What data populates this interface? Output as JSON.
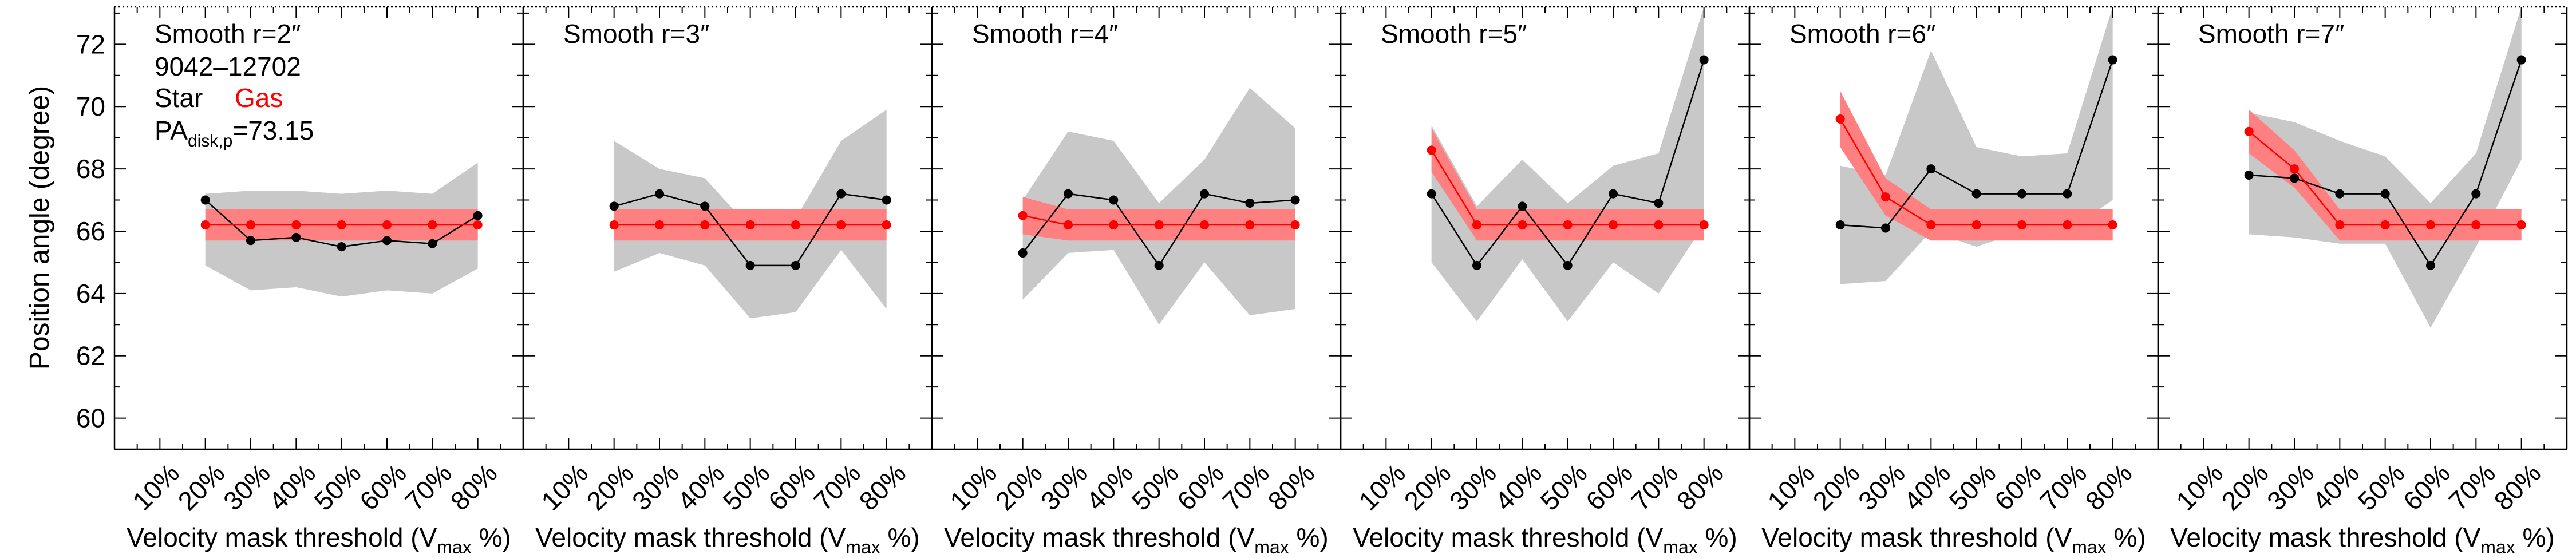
{
  "y_axis_label": "Position angle (degree)",
  "colors": {
    "star": "#000000",
    "gas": "#ff0000",
    "star_band": "#c8c8c8",
    "gas_band": "#ff8080"
  },
  "chart_data": [
    {
      "type": "line",
      "title": "Smooth r=2″",
      "info_lines": [
        "9042–12702"
      ],
      "legend_star": "Star",
      "legend_gas": "Gas",
      "pa_label_main": "PA",
      "pa_label_sub": "disk,p",
      "pa_label_value": "=73.15",
      "xlabel": "Velocity mask threshold (V",
      "xlabel_sub": "max",
      "xlabel_end": " %)",
      "xlim": [
        0,
        90
      ],
      "ylim": [
        59,
        73.2
      ],
      "x_ticks": [
        10,
        20,
        30,
        40,
        50,
        60,
        70,
        80
      ],
      "x_tick_labels": [
        "10%",
        "20%",
        "30%",
        "40%",
        "50%",
        "60%",
        "70%",
        "80%"
      ],
      "y_ticks": [
        60,
        62,
        64,
        66,
        68,
        70,
        72
      ],
      "y_tick_labels": [
        "60",
        "62",
        "64",
        "66",
        "68",
        "70",
        "72"
      ],
      "series": [
        {
          "name": "Star",
          "x": [
            20,
            30,
            40,
            50,
            60,
            70,
            80
          ],
          "y": [
            67.0,
            65.7,
            65.8,
            65.5,
            65.7,
            65.6,
            66.5
          ],
          "band_low": [
            64.9,
            64.1,
            64.2,
            63.9,
            64.1,
            64.0,
            64.8
          ],
          "band_high": [
            67.2,
            67.3,
            67.3,
            67.2,
            67.3,
            67.2,
            68.2
          ]
        },
        {
          "name": "Gas",
          "x": [
            20,
            30,
            40,
            50,
            60,
            70,
            80
          ],
          "y": [
            66.2,
            66.2,
            66.2,
            66.2,
            66.2,
            66.2,
            66.2
          ],
          "band_low": [
            65.7,
            65.7,
            65.7,
            65.7,
            65.7,
            65.7,
            65.7
          ],
          "band_high": [
            66.7,
            66.7,
            66.7,
            66.7,
            66.7,
            66.7,
            66.7
          ]
        }
      ]
    },
    {
      "type": "line",
      "title": "Smooth r=3″",
      "xlabel": "Velocity mask threshold (V",
      "xlabel_sub": "max",
      "xlabel_end": " %)",
      "xlim": [
        0,
        90
      ],
      "ylim": [
        59,
        73.2
      ],
      "x_ticks": [
        10,
        20,
        30,
        40,
        50,
        60,
        70,
        80
      ],
      "x_tick_labels": [
        "10%",
        "20%",
        "30%",
        "40%",
        "50%",
        "60%",
        "70%",
        "80%"
      ],
      "series": [
        {
          "name": "Star",
          "x": [
            20,
            30,
            40,
            50,
            60,
            70,
            80
          ],
          "y": [
            66.8,
            67.2,
            66.8,
            64.9,
            64.9,
            67.2,
            67.0
          ],
          "band_low": [
            64.7,
            65.3,
            64.9,
            63.2,
            63.4,
            65.4,
            63.5
          ],
          "band_high": [
            68.9,
            68.0,
            67.7,
            66.1,
            66.4,
            68.9,
            69.9
          ]
        },
        {
          "name": "Gas",
          "x": [
            20,
            30,
            40,
            50,
            60,
            70,
            80
          ],
          "y": [
            66.2,
            66.2,
            66.2,
            66.2,
            66.2,
            66.2,
            66.2
          ],
          "band_low": [
            65.7,
            65.7,
            65.7,
            65.7,
            65.7,
            65.7,
            65.7
          ],
          "band_high": [
            66.7,
            66.7,
            66.7,
            66.7,
            66.7,
            66.7,
            66.7
          ]
        }
      ]
    },
    {
      "type": "line",
      "title": "Smooth r=4″",
      "xlabel": "Velocity mask threshold (V",
      "xlabel_sub": "max",
      "xlabel_end": " %)",
      "xlim": [
        0,
        90
      ],
      "ylim": [
        59,
        73.2
      ],
      "x_ticks": [
        10,
        20,
        30,
        40,
        50,
        60,
        70,
        80
      ],
      "x_tick_labels": [
        "10%",
        "20%",
        "30%",
        "40%",
        "50%",
        "60%",
        "70%",
        "80%"
      ],
      "series": [
        {
          "name": "Star",
          "x": [
            20,
            30,
            40,
            50,
            60,
            70,
            80
          ],
          "y": [
            65.3,
            67.2,
            67.0,
            64.9,
            67.2,
            66.9,
            67.0
          ],
          "band_low": [
            63.8,
            65.3,
            65.4,
            63.0,
            65.0,
            63.3,
            63.5
          ],
          "band_high": [
            67.0,
            69.2,
            68.9,
            66.9,
            68.3,
            70.6,
            69.3
          ]
        },
        {
          "name": "Gas",
          "x": [
            20,
            30,
            40,
            50,
            60,
            70,
            80
          ],
          "y": [
            66.5,
            66.2,
            66.2,
            66.2,
            66.2,
            66.2,
            66.2
          ],
          "band_low": [
            65.9,
            65.7,
            65.7,
            65.7,
            65.7,
            65.7,
            65.7
          ],
          "band_high": [
            67.1,
            66.7,
            66.7,
            66.7,
            66.7,
            66.7,
            66.7
          ]
        }
      ]
    },
    {
      "type": "line",
      "title": "Smooth r=5″",
      "xlabel": "Velocity mask threshold (V",
      "xlabel_sub": "max",
      "xlabel_end": " %)",
      "xlim": [
        0,
        90
      ],
      "ylim": [
        59,
        73.2
      ],
      "x_ticks": [
        10,
        20,
        30,
        40,
        50,
        60,
        70,
        80
      ],
      "x_tick_labels": [
        "10%",
        "20%",
        "30%",
        "40%",
        "50%",
        "60%",
        "70%",
        "80%"
      ],
      "series": [
        {
          "name": "Star",
          "x": [
            20,
            30,
            40,
            50,
            60,
            70,
            80
          ],
          "y": [
            67.2,
            64.9,
            66.8,
            64.9,
            67.2,
            66.9,
            71.5
          ],
          "band_low": [
            65.0,
            63.1,
            65.1,
            63.1,
            65.0,
            64.0,
            66.2
          ],
          "band_high": [
            69.4,
            66.8,
            68.3,
            66.9,
            68.1,
            68.5,
            73.2
          ]
        },
        {
          "name": "Gas",
          "x": [
            20,
            30,
            40,
            50,
            60,
            70,
            80
          ],
          "y": [
            68.6,
            66.2,
            66.2,
            66.2,
            66.2,
            66.2,
            66.2
          ],
          "band_low": [
            67.9,
            65.7,
            65.7,
            65.7,
            65.7,
            65.7,
            65.7
          ],
          "band_high": [
            69.3,
            66.7,
            66.7,
            66.7,
            66.7,
            66.7,
            66.7
          ]
        }
      ]
    },
    {
      "type": "line",
      "title": "Smooth r=6″",
      "xlabel": "Velocity mask threshold (V",
      "xlabel_sub": "max",
      "xlabel_end": " %)",
      "xlim": [
        0,
        90
      ],
      "ylim": [
        59,
        73.2
      ],
      "x_ticks": [
        10,
        20,
        30,
        40,
        50,
        60,
        70,
        80
      ],
      "x_tick_labels": [
        "10%",
        "20%",
        "30%",
        "40%",
        "50%",
        "60%",
        "70%",
        "80%"
      ],
      "series": [
        {
          "name": "Star",
          "x": [
            20,
            30,
            40,
            50,
            60,
            70,
            80
          ],
          "y": [
            66.2,
            66.1,
            68.0,
            67.2,
            67.2,
            67.2,
            71.5
          ],
          "band_low": [
            64.3,
            64.4,
            66.0,
            65.5,
            66.0,
            66.0,
            67.0
          ],
          "band_high": [
            68.1,
            67.8,
            71.8,
            68.7,
            68.4,
            68.5,
            73.2
          ]
        },
        {
          "name": "Gas",
          "x": [
            20,
            30,
            40,
            50,
            60,
            70,
            80
          ],
          "y": [
            69.6,
            67.1,
            66.2,
            66.2,
            66.2,
            66.2,
            66.2
          ],
          "band_low": [
            68.7,
            66.5,
            65.7,
            65.7,
            65.7,
            65.7,
            65.7
          ],
          "band_high": [
            70.5,
            67.7,
            66.7,
            66.7,
            66.7,
            66.7,
            66.7
          ]
        }
      ]
    },
    {
      "type": "line",
      "title": "Smooth r=7″",
      "xlabel": "Velocity mask threshold (V",
      "xlabel_sub": "max",
      "xlabel_end": " %)",
      "xlim": [
        0,
        90
      ],
      "ylim": [
        59,
        73.2
      ],
      "x_ticks": [
        10,
        20,
        30,
        40,
        50,
        60,
        70,
        80
      ],
      "x_tick_labels": [
        "10%",
        "20%",
        "30%",
        "40%",
        "50%",
        "60%",
        "70%",
        "80%"
      ],
      "series": [
        {
          "name": "Star",
          "x": [
            20,
            30,
            40,
            50,
            60,
            70,
            80
          ],
          "y": [
            67.8,
            67.7,
            67.2,
            67.2,
            64.9,
            67.2,
            71.5
          ],
          "band_low": [
            65.9,
            65.8,
            65.6,
            65.6,
            62.9,
            65.5,
            68.3
          ],
          "band_high": [
            69.8,
            69.5,
            68.9,
            68.4,
            66.9,
            68.5,
            73.2
          ]
        },
        {
          "name": "Gas",
          "x": [
            20,
            30,
            40,
            50,
            60,
            70,
            80
          ],
          "y": [
            69.2,
            68.0,
            66.2,
            66.2,
            66.2,
            66.2,
            66.2
          ],
          "band_low": [
            68.5,
            67.4,
            65.7,
            65.7,
            65.7,
            65.7,
            65.7
          ],
          "band_high": [
            69.9,
            68.6,
            66.7,
            66.7,
            66.7,
            66.7,
            66.7
          ]
        }
      ]
    }
  ]
}
